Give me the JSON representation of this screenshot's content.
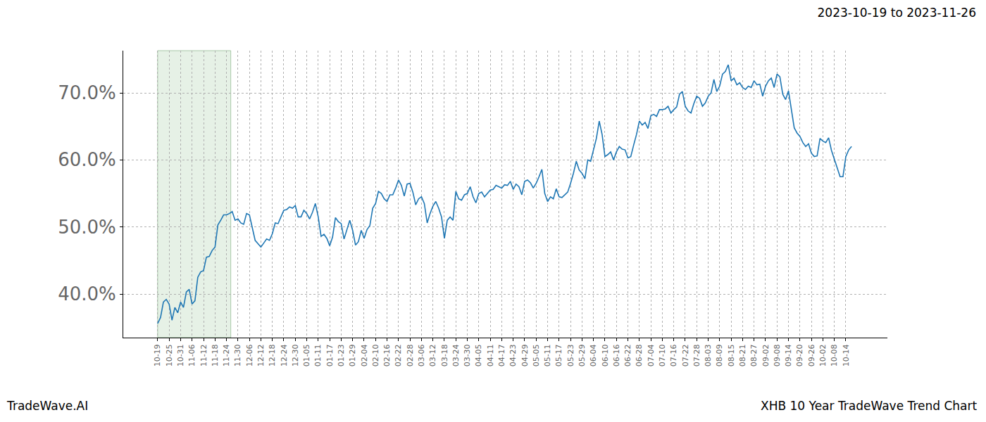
{
  "chart_data": {
    "type": "line",
    "title": "2023-10-19 to 2023-11-26",
    "annotations": [
      "TradeWave.AI",
      "XHB 10 Year TradeWave Trend Chart"
    ],
    "highlight": [
      "10-19",
      "11-24"
    ],
    "categories": [
      "10-19",
      null,
      null,
      null,
      "10-25",
      null,
      null,
      null,
      "10-31",
      null,
      null,
      null,
      "11-06",
      null,
      null,
      null,
      "11-12",
      null,
      null,
      null,
      "11-18",
      null,
      null,
      null,
      "11-24",
      null,
      null,
      null,
      "11-30",
      null,
      null,
      null,
      "12-06",
      null,
      null,
      null,
      "12-12",
      null,
      null,
      null,
      "12-18",
      null,
      null,
      null,
      "12-24",
      null,
      null,
      null,
      "12-30",
      null,
      null,
      null,
      "01-05",
      null,
      null,
      null,
      "01-11",
      null,
      null,
      null,
      "01-17",
      null,
      null,
      null,
      "01-23",
      null,
      null,
      null,
      "01-29",
      null,
      null,
      null,
      "02-04",
      null,
      null,
      null,
      "02-10",
      null,
      null,
      null,
      "02-16",
      null,
      null,
      null,
      "02-22",
      null,
      null,
      null,
      "02-28",
      null,
      null,
      null,
      "03-06",
      null,
      null,
      null,
      "03-12",
      null,
      null,
      null,
      "03-18",
      null,
      null,
      null,
      "03-24",
      null,
      null,
      null,
      "03-30",
      null,
      null,
      null,
      "04-05",
      null,
      null,
      null,
      "04-11",
      null,
      null,
      null,
      "04-17",
      null,
      null,
      null,
      "04-23",
      null,
      null,
      null,
      "04-29",
      null,
      null,
      null,
      "05-05",
      null,
      null,
      null,
      "05-11",
      null,
      null,
      null,
      "05-17",
      null,
      null,
      null,
      "05-23",
      null,
      null,
      null,
      "05-29",
      null,
      null,
      null,
      "06-04",
      null,
      null,
      null,
      "06-10",
      null,
      null,
      null,
      "06-16",
      null,
      null,
      null,
      "06-22",
      null,
      null,
      null,
      "06-28",
      null,
      null,
      null,
      "07-04",
      null,
      null,
      null,
      "07-10",
      null,
      null,
      null,
      "07-16",
      null,
      null,
      null,
      "07-22",
      null,
      null,
      null,
      "07-28",
      null,
      null,
      null,
      "08-03",
      null,
      null,
      null,
      "08-09",
      null,
      null,
      null,
      "08-15",
      null,
      null,
      null,
      "08-21",
      null,
      null,
      null,
      "08-27",
      null,
      null,
      null,
      "09-02",
      null,
      null,
      null,
      "09-08",
      null,
      null,
      null,
      "09-14",
      null,
      null,
      null,
      "09-20",
      null,
      null,
      null,
      "09-26",
      null,
      null,
      null,
      "10-02",
      null,
      null,
      null,
      "10-08",
      null,
      null,
      null,
      "10-14",
      null,
      null
    ],
    "series": [
      {
        "name": "XHB",
        "color": "#1f77b4",
        "values": [
          35.6,
          36.5,
          38.8,
          39.2,
          38.5,
          36.1,
          38.0,
          37.2,
          38.8,
          38.0,
          40.3,
          40.7,
          38.5,
          39.0,
          42.5,
          43.3,
          43.5,
          45.5,
          45.6,
          46.5,
          47.0,
          50.3,
          51.0,
          51.8,
          51.8,
          52.0,
          52.3,
          51.0,
          51.2,
          50.6,
          50.4,
          52.0,
          51.8,
          49.8,
          48.0,
          47.5,
          47.0,
          47.6,
          48.2,
          48.0,
          49.0,
          50.6,
          50.5,
          51.5,
          52.5,
          52.6,
          53.0,
          52.8,
          53.2,
          51.5,
          51.5,
          52.5,
          52.0,
          51.2,
          52.2,
          53.5,
          51.5,
          48.6,
          48.9,
          48.3,
          47.2,
          48.5,
          51.4,
          50.8,
          50.5,
          48.2,
          49.5,
          51.0,
          49.5,
          47.3,
          47.8,
          49.5,
          48.3,
          49.6,
          50.2,
          52.8,
          53.5,
          55.3,
          55.0,
          54.2,
          53.8,
          54.8,
          54.8,
          55.8,
          57.0,
          56.2,
          54.6,
          56.4,
          56.5,
          55.2,
          53.3,
          54.2,
          54.5,
          53.5,
          50.6,
          52.0,
          53.1,
          53.8,
          52.8,
          51.5,
          48.3,
          51.0,
          51.5,
          51.0,
          55.3,
          54.2,
          54.0,
          54.8,
          55.0,
          56.0,
          54.5,
          53.6,
          55.0,
          55.2,
          54.5,
          55.0,
          55.5,
          55.6,
          56.2,
          56.0,
          55.8,
          56.3,
          56.2,
          56.8,
          55.6,
          56.4,
          56.0,
          54.8,
          56.8,
          57.0,
          56.6,
          55.8,
          56.5,
          57.5,
          58.6,
          55.0,
          53.8,
          54.5,
          54.2,
          55.7,
          54.5,
          54.4,
          54.8,
          55.2,
          56.5,
          58.0,
          59.8,
          58.5,
          58.0,
          57.2,
          60.0,
          59.8,
          61.5,
          63.2,
          65.8,
          63.8,
          60.5,
          60.8,
          61.2,
          60.0,
          61.2,
          62.0,
          61.6,
          61.5,
          60.3,
          60.5,
          62.2,
          63.8,
          65.8,
          65.2,
          65.6,
          64.7,
          66.6,
          66.8,
          66.5,
          67.5,
          67.5,
          67.6,
          68.0,
          67.0,
          67.5,
          67.9,
          69.8,
          70.2,
          68.0,
          67.3,
          67.0,
          68.4,
          69.5,
          69.2,
          68.0,
          68.5,
          69.5,
          70.0,
          72.0,
          70.2,
          71.0,
          72.8,
          73.2,
          74.2,
          71.8,
          72.2,
          71.2,
          71.5,
          70.8,
          70.5,
          71.0,
          70.8,
          71.8,
          71.2,
          71.3,
          69.5,
          71.0,
          71.8,
          72.2,
          70.8,
          72.8,
          72.4,
          69.8,
          69.0,
          70.3,
          67.5,
          64.8,
          64.0,
          63.5,
          62.6,
          62.0,
          62.4,
          61.0,
          60.5,
          60.6,
          63.2,
          62.8,
          62.6,
          63.3,
          61.4,
          60.0,
          58.8,
          57.5,
          57.5,
          60.5,
          61.5,
          62.0
        ]
      }
    ],
    "xlim": [
      -12,
      254.5
    ],
    "ylim": [
      33.5,
      76.3
    ],
    "yticks": [
      {
        "value": 40,
        "label": "40.0%"
      },
      {
        "value": 50,
        "label": "50.0%"
      },
      {
        "value": 60,
        "label": "60.0%"
      },
      {
        "value": 70,
        "label": "70.0%"
      }
    ],
    "grid": true
  }
}
